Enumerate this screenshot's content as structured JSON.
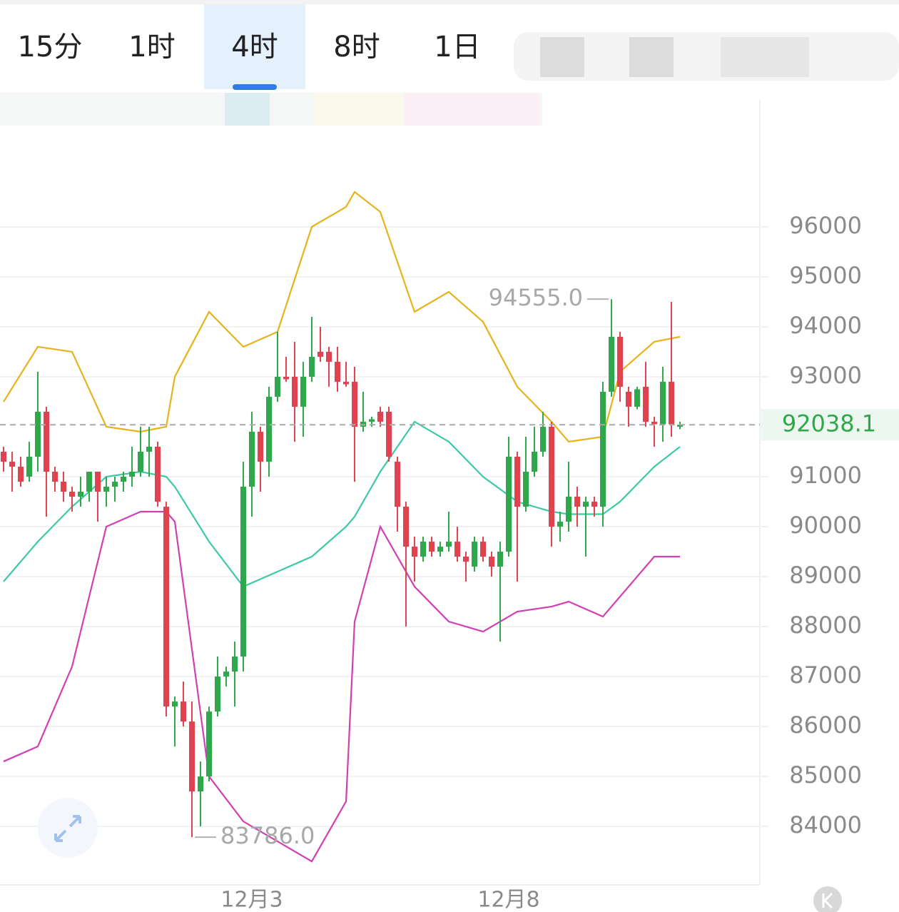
{
  "tabs": [
    "15分",
    "1时",
    "4时",
    "8时",
    "1日"
  ],
  "active_tab": 2,
  "chart_data": {
    "type": "candlestick",
    "categories": [
      null,
      null,
      null,
      null,
      null,
      null,
      null,
      null,
      null,
      null,
      null,
      null,
      null,
      null,
      null,
      null,
      null,
      null,
      null,
      null,
      null,
      null,
      null,
      null,
      null,
      null,
      null,
      null,
      null,
      "12月3",
      null,
      null,
      null,
      null,
      null,
      null,
      null,
      null,
      null,
      null,
      null,
      null,
      null,
      null,
      null,
      null,
      null,
      null,
      null,
      null,
      null,
      null,
      null,
      null,
      null,
      null,
      null,
      null,
      null,
      "12月8",
      null,
      null,
      null,
      null,
      null,
      null,
      null,
      null,
      null,
      null,
      null,
      null,
      null,
      null,
      null,
      null,
      null,
      null,
      null,
      null
    ],
    "open": [
      91500,
      91300,
      91200,
      91000,
      91400,
      92300,
      91100,
      90900,
      90700,
      90600,
      90700,
      91100,
      90700,
      90800,
      90900,
      91000,
      91100,
      91500,
      91600,
      90400,
      86400,
      86500,
      86100,
      84700,
      85000,
      86300,
      87000,
      87100,
      87400,
      90800,
      91900,
      91300,
      92600,
      93000,
      93000,
      92400,
      93000,
      93500,
      93500,
      93300,
      92900,
      92900,
      92000,
      92100,
      92300,
      92300,
      91300,
      90400,
      89600,
      89400,
      89700,
      89500,
      89600,
      89700,
      89400,
      89200,
      89700,
      89400,
      89200,
      89500,
      91400,
      90400,
      91100,
      91500,
      92000,
      90000,
      90100,
      90600,
      90400,
      90500,
      90400,
      92700,
      93800,
      92700,
      92400,
      92800,
      92100,
      92050,
      92900,
      92000
    ],
    "high": [
      91600,
      91500,
      91400,
      91700,
      93100,
      92400,
      91200,
      91100,
      90800,
      91000,
      91100,
      91100,
      91000,
      91000,
      91100,
      91600,
      92000,
      92000,
      91700,
      90500,
      86600,
      86900,
      86500,
      85300,
      86400,
      87400,
      87200,
      87700,
      91300,
      92300,
      92000,
      92800,
      93900,
      93400,
      93700,
      93300,
      94200,
      94000,
      93600,
      93600,
      93300,
      93200,
      92700,
      92200,
      92400,
      92400,
      91400,
      90500,
      89800,
      89800,
      89800,
      89700,
      90300,
      90000,
      89500,
      89800,
      89800,
      89500,
      89700,
      91800,
      91500,
      91800,
      92000,
      92300,
      92100,
      90300,
      91300,
      90800,
      90600,
      90600,
      92900,
      94555,
      93900,
      92800,
      92800,
      93300,
      92200,
      93200,
      94500,
      92100
    ],
    "low": [
      91100,
      90700,
      90800,
      90900,
      91100,
      90200,
      90700,
      90500,
      90300,
      90400,
      90500,
      90100,
      90400,
      90500,
      90700,
      90800,
      91000,
      91000,
      90400,
      86200,
      85600,
      86000,
      83786,
      84000,
      84900,
      86200,
      86800,
      86400,
      87100,
      90200,
      90700,
      91000,
      92500,
      92900,
      91700,
      91800,
      92900,
      93300,
      92800,
      92700,
      92800,
      90900,
      91900,
      92000,
      92000,
      91300,
      89900,
      88000,
      88900,
      89300,
      89400,
      89400,
      89500,
      89300,
      88900,
      89100,
      89300,
      89000,
      87700,
      89400,
      88900,
      90300,
      91000,
      91400,
      89600,
      89700,
      89900,
      90000,
      89400,
      90200,
      90000,
      92600,
      92500,
      92000,
      92350,
      92000,
      91600,
      91700,
      91800,
      91950
    ],
    "close": [
      91300,
      91200,
      90900,
      91400,
      92300,
      91100,
      90900,
      90700,
      90600,
      90700,
      91100,
      90700,
      90800,
      90900,
      91000,
      91100,
      91500,
      91600,
      90500,
      86400,
      86500,
      86100,
      84700,
      85000,
      86300,
      87000,
      87100,
      87400,
      90800,
      91900,
      91300,
      92600,
      93000,
      92950,
      92400,
      93000,
      93400,
      93400,
      93300,
      92900,
      92850,
      92000,
      92100,
      92150,
      92100,
      91400,
      90400,
      89600,
      89400,
      89700,
      89500,
      89600,
      89700,
      89400,
      89300,
      89700,
      89400,
      89200,
      89500,
      91400,
      90400,
      91100,
      91500,
      92000,
      90000,
      90100,
      90600,
      90400,
      90500,
      90400,
      92700,
      93800,
      92800,
      92400,
      92750,
      92100,
      92050,
      92900,
      92050,
      92038.1
    ],
    "up_color": "#2ea84a",
    "down_color": "#e0434f",
    "lines": {
      "x": [
        0,
        4,
        8,
        12,
        16,
        19,
        20,
        24,
        28,
        32,
        36,
        40,
        41,
        44,
        48,
        52,
        56,
        60,
        64,
        66,
        70,
        72,
        76,
        79
      ],
      "series": [
        {
          "color": "#e8b21a",
          "values": [
            92500,
            93600,
            93500,
            92000,
            91900,
            92000,
            93000,
            94300,
            93600,
            93900,
            96000,
            96400,
            96700,
            96300,
            94300,
            94700,
            94100,
            92800,
            92100,
            91700,
            91800,
            93100,
            93700,
            93800
          ]
        },
        {
          "color": "#3cc9a8",
          "values": [
            88900,
            89700,
            90400,
            91000,
            91100,
            91000,
            90800,
            89700,
            88800,
            89100,
            89400,
            90000,
            90200,
            91100,
            92100,
            91700,
            91000,
            90500,
            90300,
            90250,
            90250,
            90500,
            91200,
            91600
          ]
        },
        {
          "color": "#d23fb5",
          "values": [
            85300,
            85600,
            87200,
            90000,
            90300,
            90300,
            90100,
            85000,
            84100,
            83700,
            83300,
            84500,
            88100,
            90000,
            88800,
            88100,
            87900,
            88300,
            88400,
            88500,
            88200,
            88600,
            89400,
            89400
          ]
        }
      ]
    },
    "last_price": 92038.1,
    "high_label": {
      "value": 94555,
      "label": "94555.0"
    },
    "low_label": {
      "value": 83786,
      "label": "83786.0"
    },
    "ylim": [
      82830,
      97970
    ],
    "yticks": [
      84000,
      85000,
      86000,
      87000,
      88000,
      89000,
      90000,
      91000,
      93000,
      94000,
      95000,
      96000
    ],
    "grid": true
  }
}
